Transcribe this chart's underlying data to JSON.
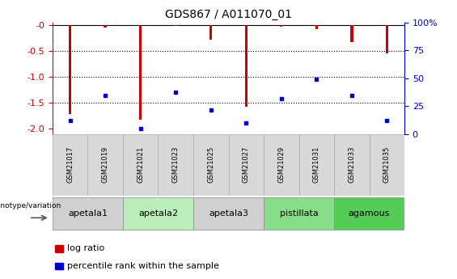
{
  "title": "GDS867 / A011070_01",
  "samples": [
    "GSM21017",
    "GSM21019",
    "GSM21021",
    "GSM21023",
    "GSM21025",
    "GSM21027",
    "GSM21029",
    "GSM21031",
    "GSM21033",
    "GSM21035"
  ],
  "log_ratio": [
    -1.72,
    -0.05,
    -1.83,
    -0.02,
    -0.28,
    -1.58,
    -0.03,
    -0.08,
    -0.33,
    -0.55
  ],
  "percentile_rank": [
    12,
    35,
    5,
    38,
    22,
    10,
    32,
    50,
    35,
    12
  ],
  "groups": [
    {
      "label": "apetala1",
      "indices": [
        0,
        1
      ],
      "color": "#d0d0d0"
    },
    {
      "label": "apetala2",
      "indices": [
        2,
        3
      ],
      "color": "#cceecc"
    },
    {
      "label": "apetala3",
      "indices": [
        4,
        5
      ],
      "color": "#d0d0d0"
    },
    {
      "label": "pistillata",
      "indices": [
        6,
        7
      ],
      "color": "#99dd99"
    },
    {
      "label": "agamous",
      "indices": [
        8,
        9
      ],
      "color": "#66cc66"
    }
  ],
  "ylim": [
    -2.1,
    0.05
  ],
  "right_ylim": [
    0,
    100
  ],
  "bar_color": "#cc0000",
  "marker_color": "#0000cc",
  "left_axis_color": "#cc0000",
  "right_axis_color": "#0000cc",
  "grid_yticks": [
    -0.5,
    -1.0,
    -1.5
  ],
  "left_yticks": [
    0,
    -0.5,
    -1.0,
    -1.5,
    -2.0
  ],
  "right_yticks": [
    0,
    25,
    50,
    75,
    100
  ],
  "sample_box_color": "#d8d8d8",
  "bar_width": 0.08
}
